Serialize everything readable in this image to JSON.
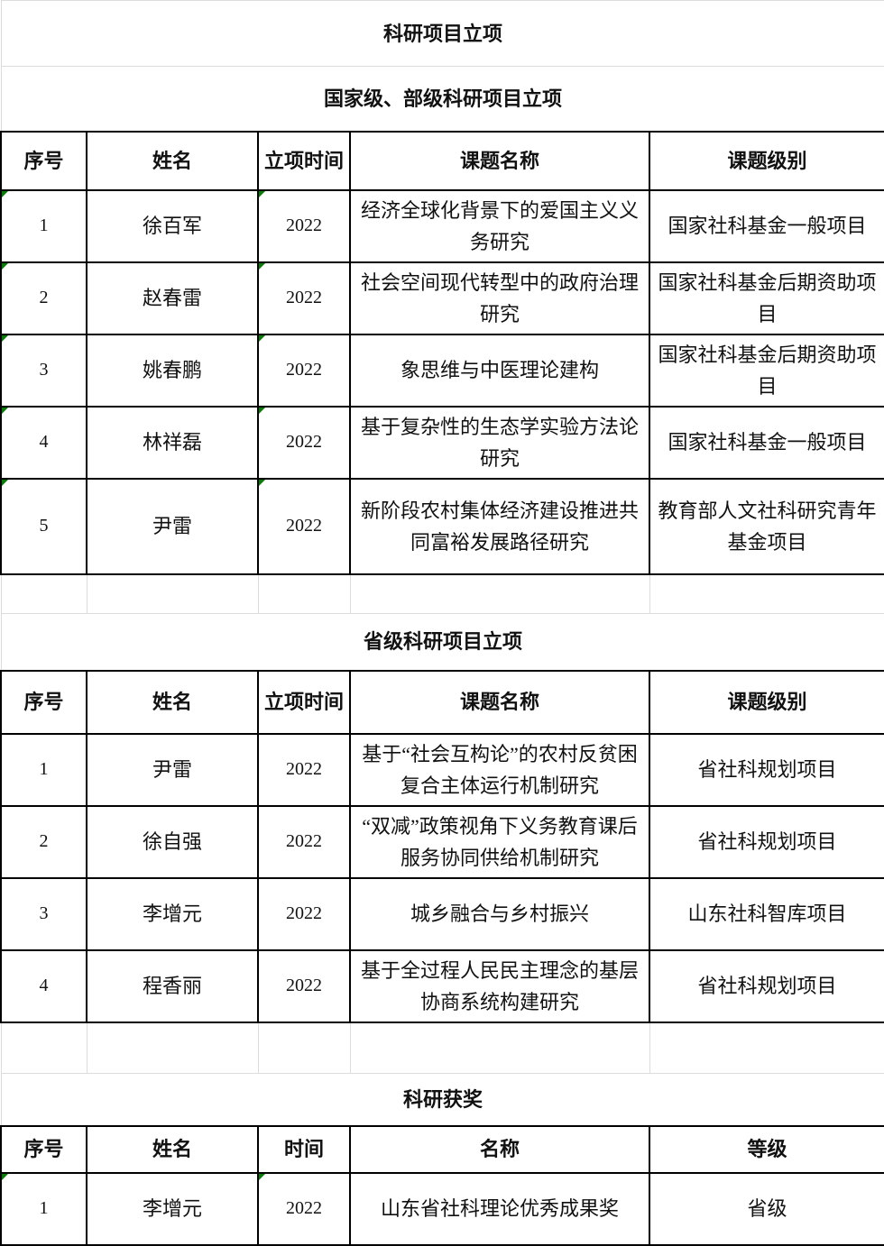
{
  "title": "科研项目立项",
  "national": {
    "title": "国家级、部级科研项目立项",
    "headers": [
      "序号",
      "姓名",
      "立项时间",
      "课题名称",
      "课题级别"
    ],
    "rows": [
      [
        "1",
        "徐百军",
        "2022",
        "经济全球化背景下的爱国主义义务研究",
        "国家社科基金一般项目"
      ],
      [
        "2",
        "赵春雷",
        "2022",
        "社会空间现代转型中的政府治理研究",
        "国家社科基金后期资助项目"
      ],
      [
        "3",
        "姚春鹏",
        "2022",
        "象思维与中医理论建构",
        "国家社科基金后期资助项目"
      ],
      [
        "4",
        "林祥磊",
        "2022",
        "基于复杂性的生态学实验方法论研究",
        "国家社科基金一般项目"
      ],
      [
        "5",
        "尹雷",
        "2022",
        "新阶段农村集体经济建设推进共同富裕发展路径研究",
        "教育部人文社科研究青年基金项目"
      ]
    ]
  },
  "provincial": {
    "title": "省级科研项目立项",
    "headers": [
      "序号",
      "姓名",
      "立项时间",
      "课题名称",
      "课题级别"
    ],
    "rows": [
      [
        "1",
        "尹雷",
        "2022",
        "基于“社会互构论”的农村反贫困复合主体运行机制研究",
        "省社科规划项目"
      ],
      [
        "2",
        "徐自强",
        "2022",
        "“双减”政策视角下义务教育课后服务协同供给机制研究",
        "省社科规划项目"
      ],
      [
        "3",
        "李增元",
        "2022",
        "城乡融合与乡村振兴",
        "山东社科智库项目"
      ],
      [
        "4",
        "程香丽",
        "2022",
        "基于全过程人民民主理念的基层协商系统构建研究",
        "省社科规划项目"
      ]
    ]
  },
  "awards": {
    "title": "科研获奖",
    "headers": [
      "序号",
      "姓名",
      "时间",
      "名称",
      "等级"
    ],
    "rows": [
      [
        "1",
        "李增元",
        "2022",
        "山东省社科理论优秀成果奖",
        "省级"
      ]
    ]
  },
  "colors": {
    "text_indicator": "#0a7a0a"
  }
}
